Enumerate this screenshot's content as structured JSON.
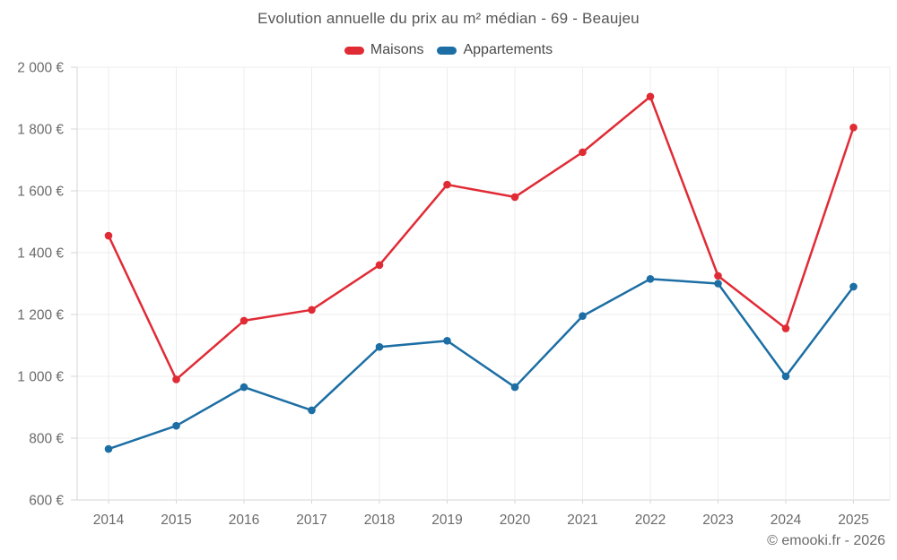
{
  "chart_data": {
    "type": "line",
    "title": "Evolution annuelle du prix au m² médian - 69 - Beaujeu",
    "categories": [
      "2014",
      "2015",
      "2016",
      "2017",
      "2018",
      "2019",
      "2020",
      "2021",
      "2022",
      "2023",
      "2024",
      "2025"
    ],
    "series": [
      {
        "name": "Maisons",
        "color": "#e02b35",
        "values": [
          1455,
          990,
          1180,
          1215,
          1360,
          1620,
          1580,
          1725,
          1905,
          1325,
          1155,
          1805
        ]
      },
      {
        "name": "Appartements",
        "color": "#1c6ea4",
        "values": [
          765,
          840,
          965,
          890,
          1095,
          1115,
          965,
          1195,
          1315,
          1300,
          1000,
          1290
        ]
      }
    ],
    "ylim": [
      600,
      2000
    ],
    "y_tick_step": 200,
    "y_tick_labels": [
      "600 €",
      "800 €",
      "1 000 €",
      "1 200 €",
      "1 400 €",
      "1 600 €",
      "1 800 €",
      "2 000 €"
    ],
    "currency": "€",
    "grid": true,
    "legend_position": "top"
  },
  "footer": {
    "copyright": "© emooki.fr - 2026"
  },
  "colors": {
    "grid": "#ececec",
    "axis": "#d6d6d6",
    "tick_label": "#6b6b6b",
    "title": "#565656",
    "background": "#ffffff"
  }
}
